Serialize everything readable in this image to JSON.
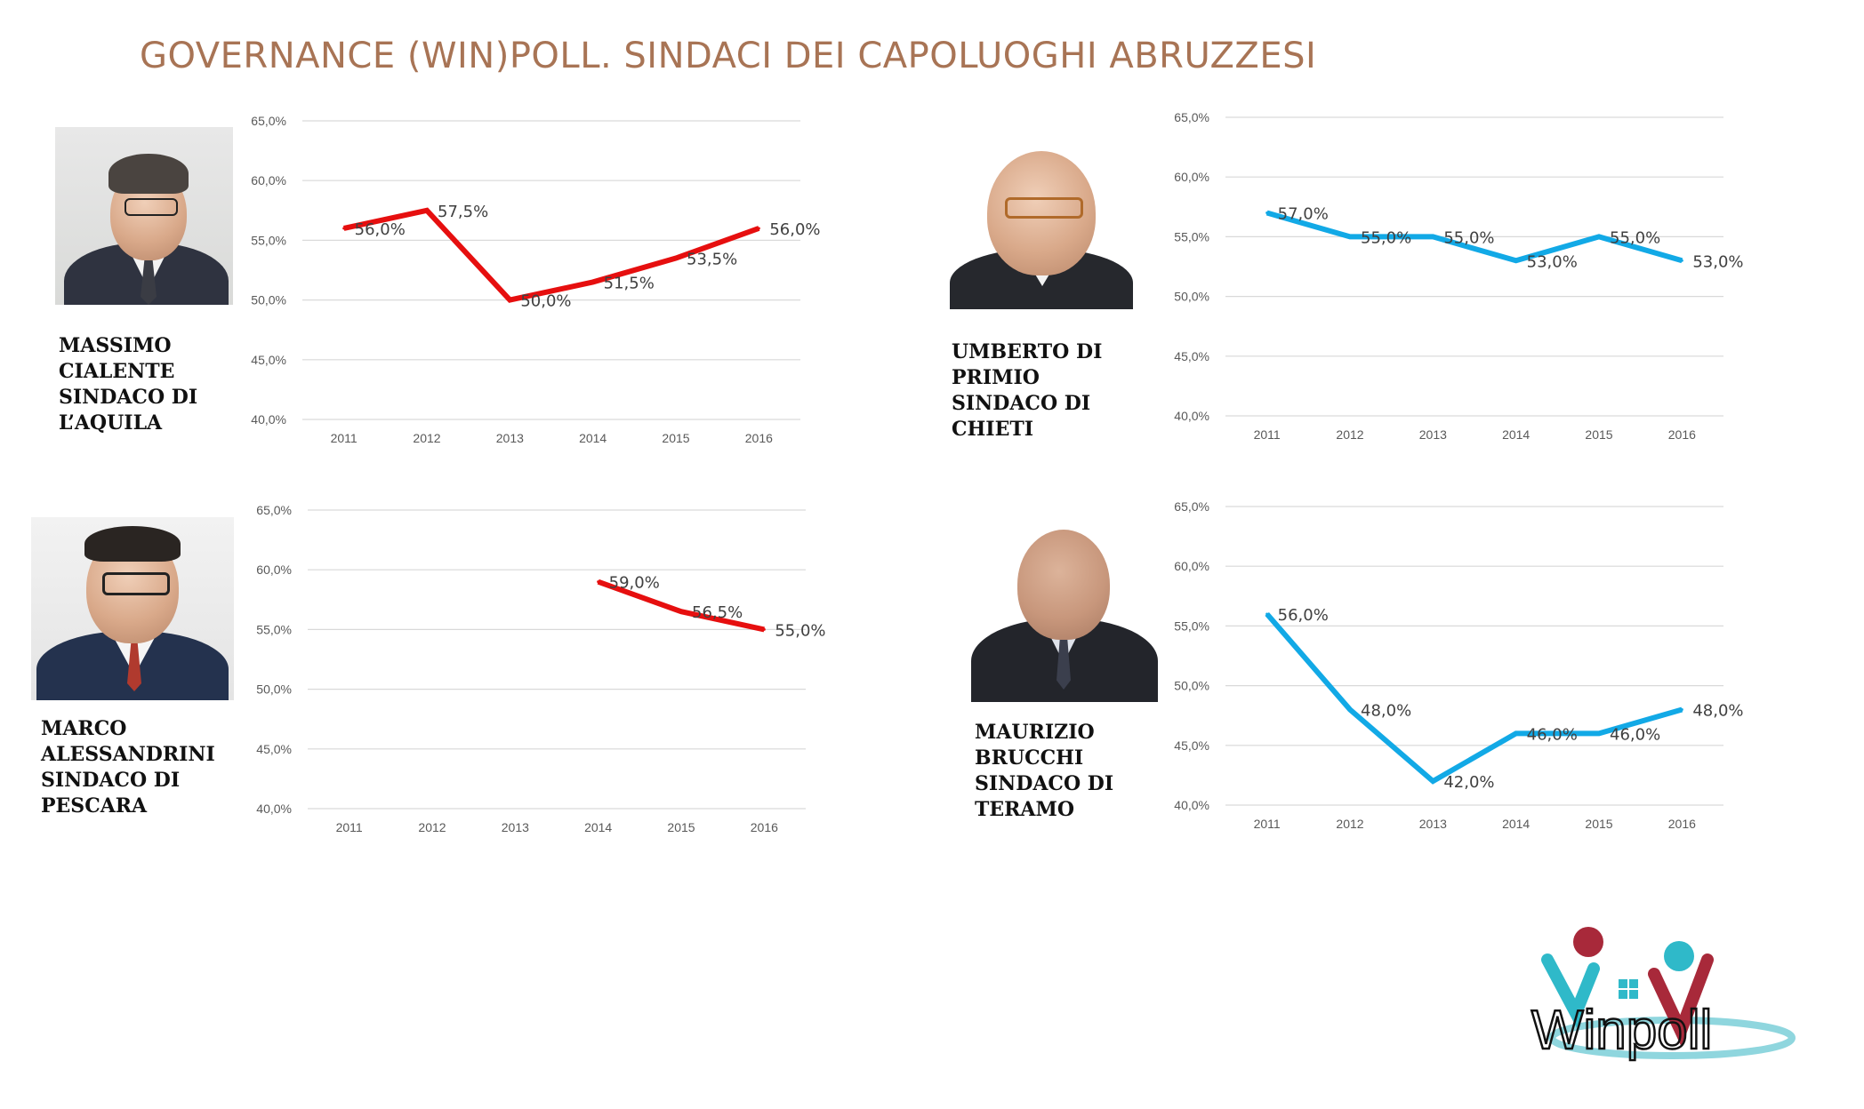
{
  "title": "GOVERNANCE (WIN)POLL. SINDACI DEI CAPOLUOGHI ABRUZZESI",
  "people": [
    {
      "id": "aquila",
      "name": "MASSIMO\nCIALENTE\nSINDACO DI\nL’AQUILA"
    },
    {
      "id": "chieti",
      "name": "UMBERTO DI\nPRIMIO\nSINDACO DI\nCHIETI"
    },
    {
      "id": "pescara",
      "name": "MARCO\nALESSANDRINI\nSINDACO DI\nPESCARA"
    },
    {
      "id": "teramo",
      "name": "MAURIZIO\nBRUCCHI\nSINDACO DI\nTERAMO"
    }
  ],
  "logo_text": "Winpoll",
  "colors": {
    "red": "#e60f0f",
    "blue": "#12a9e6",
    "title": "#a87455",
    "grid": "#d9d9d9"
  },
  "chart_data": [
    {
      "id": "aquila",
      "type": "line",
      "color": "red",
      "x": [
        "2011",
        "2012",
        "2013",
        "2014",
        "2015",
        "2016"
      ],
      "values": [
        56.0,
        57.5,
        50.0,
        51.5,
        53.5,
        56.0
      ],
      "labels": [
        "56,0%",
        "57,5%",
        "50,0%",
        "51,5%",
        "53,5%",
        "56,0%"
      ],
      "yticks": [
        "40,0%",
        "45,0%",
        "50,0%",
        "55,0%",
        "60,0%",
        "65,0%"
      ],
      "ylim": [
        40,
        65
      ],
      "grid": true
    },
    {
      "id": "chieti",
      "type": "line",
      "color": "blue",
      "x": [
        "2011",
        "2012",
        "2013",
        "2014",
        "2015",
        "2016"
      ],
      "values": [
        57.0,
        55.0,
        55.0,
        53.0,
        55.0,
        53.0
      ],
      "labels": [
        "57,0%",
        "55,0%",
        "55,0%",
        "53,0%",
        "55,0%",
        "53,0%"
      ],
      "yticks": [
        "40,0%",
        "45,0%",
        "50,0%",
        "55,0%",
        "60,0%",
        "65,0%"
      ],
      "ylim": [
        40,
        65
      ],
      "grid": true
    },
    {
      "id": "pescara",
      "type": "line",
      "color": "red",
      "x": [
        "2011",
        "2012",
        "2013",
        "2014",
        "2015",
        "2016"
      ],
      "values": [
        null,
        null,
        null,
        59.0,
        56.5,
        55.0
      ],
      "labels": [
        null,
        null,
        null,
        "59,0%",
        "56,5%",
        "55,0%"
      ],
      "yticks": [
        "40,0%",
        "45,0%",
        "50,0%",
        "55,0%",
        "60,0%",
        "65,0%"
      ],
      "ylim": [
        40,
        65
      ],
      "grid": true
    },
    {
      "id": "teramo",
      "type": "line",
      "color": "blue",
      "x": [
        "2011",
        "2012",
        "2013",
        "2014",
        "2015",
        "2016"
      ],
      "values": [
        56.0,
        48.0,
        42.0,
        46.0,
        46.0,
        48.0
      ],
      "labels": [
        "56,0%",
        "48,0%",
        "42,0%",
        "46,0%",
        "46,0%",
        "48,0%"
      ],
      "yticks": [
        "40,0%",
        "45,0%",
        "50,0%",
        "55,0%",
        "60,0%",
        "65,0%"
      ],
      "ylim": [
        40,
        65
      ],
      "grid": true
    }
  ]
}
